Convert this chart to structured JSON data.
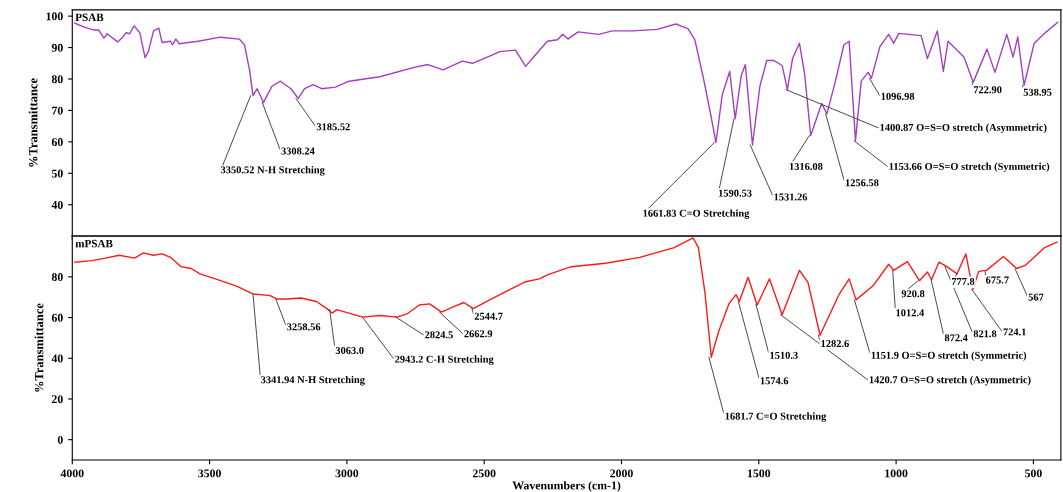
{
  "chart_data": [
    {
      "type": "line",
      "ylabel": "%Transmittance",
      "xlim": [
        4000,
        400
      ],
      "xticks": [
        4000,
        3500,
        3000,
        2500,
        2000,
        1500,
        1000,
        500
      ],
      "ylim": [
        30,
        102
      ],
      "yticks": [
        40,
        50,
        60,
        70,
        80,
        90,
        100
      ],
      "tick_labels": "y",
      "grid": false,
      "x": [
        3991,
        3954,
        3923,
        3904,
        3885,
        3873,
        3835,
        3816,
        3804,
        3791,
        3775,
        3754,
        3735,
        3723,
        3704,
        3685,
        3673,
        3642,
        3635,
        3623,
        3610,
        3542,
        3460,
        3392,
        3373,
        3354,
        3342,
        3327,
        3304,
        3273,
        3242,
        3204,
        3177,
        3154,
        3123,
        3092,
        3042,
        2992,
        2880,
        2755,
        2705,
        2649,
        2580,
        2543,
        2493,
        2443,
        2386,
        2349,
        2320,
        2270,
        2233,
        2214,
        2195,
        2158,
        2083,
        2033,
        1958,
        1870,
        1802,
        1758,
        1733,
        1702,
        1677,
        1656,
        1633,
        1606,
        1586,
        1564,
        1549,
        1523,
        1496,
        1471,
        1446,
        1415,
        1396,
        1377,
        1352,
        1333,
        1311,
        1271,
        1252,
        1221,
        1190,
        1171,
        1148,
        1127,
        1102,
        1090,
        1059,
        1027,
        1009,
        990,
        909,
        886,
        850,
        828,
        811,
        753,
        719,
        669,
        640,
        597,
        574,
        557,
        534,
        497,
        453,
        412
      ],
      "series": [
        {
          "name": "PSAB",
          "color": "#a43fc0",
          "values": [
            97.8,
            96.4,
            95.6,
            95.6,
            93,
            94.4,
            91.8,
            93.3,
            94.7,
            94.4,
            96.9,
            94.7,
            86.8,
            88.7,
            95.3,
            96.2,
            91.6,
            92,
            90.9,
            92.7,
            91.2,
            92,
            93.3,
            92.7,
            90.9,
            82.6,
            74.7,
            76.9,
            72.5,
            77.7,
            79.3,
            76.9,
            73.8,
            76.9,
            78.2,
            76.9,
            77.4,
            79.3,
            80.7,
            83.7,
            84.6,
            82.9,
            85.7,
            85,
            86.8,
            88.7,
            89.2,
            84,
            87,
            92,
            92.5,
            94.2,
            92.7,
            95,
            94.2,
            95.3,
            95.3,
            95.8,
            97.5,
            96,
            92.5,
            80.4,
            69.5,
            59.8,
            75,
            82.4,
            67.3,
            81,
            84.6,
            59,
            77.7,
            85.9,
            85.9,
            84.3,
            76.6,
            86.5,
            91.4,
            81.5,
            62,
            72.2,
            68.9,
            79.3,
            90.9,
            92,
            60.4,
            79.3,
            82.1,
            80.2,
            90.3,
            94.2,
            91.4,
            94.5,
            93.8,
            86.5,
            95.3,
            82.4,
            92,
            87,
            79,
            89.5,
            82.1,
            94.2,
            87,
            93.4,
            78,
            91.4,
            95,
            98
          ]
        }
      ],
      "annotations": [
        {
          "text": "3350.52 N-H Stretching",
          "x": 3350.52,
          "y": 74.7
        },
        {
          "text": "3308.24",
          "x": 3308.24,
          "y": 72.5
        },
        {
          "text": "3185.52",
          "x": 3185.52,
          "y": 73.8
        },
        {
          "text": "1661.83 C=O Stretching",
          "x": 1661.83,
          "y": 59.8
        },
        {
          "text": "1590.53",
          "x": 1590.53,
          "y": 67.3
        },
        {
          "text": "1531.26",
          "x": 1531.26,
          "y": 59
        },
        {
          "text": "1400.87 O=S=O stretch (Asymmetric)",
          "x": 1400.87,
          "y": 76.6
        },
        {
          "text": "1316.08",
          "x": 1316.08,
          "y": 62
        },
        {
          "text": "1256.58",
          "x": 1256.58,
          "y": 68.9
        },
        {
          "text": "1153.66 O=S=O stretch (Symmetric)",
          "x": 1153.66,
          "y": 60.4
        },
        {
          "text": "1096.98",
          "x": 1096.98,
          "y": 80.2
        },
        {
          "text": "722.90",
          "x": 722.9,
          "y": 79
        },
        {
          "text": "538.95",
          "x": 538.95,
          "y": 78
        }
      ]
    },
    {
      "type": "line",
      "ylabel": "%Transmittance",
      "xlabel": "Wavenumbers (cm-1)",
      "xlim": [
        4000,
        400
      ],
      "xticks": [
        4000,
        3500,
        3000,
        2500,
        2000,
        1500,
        1000,
        500
      ],
      "ylim": [
        -10,
        100
      ],
      "yticks": [
        0,
        20,
        40,
        60,
        80
      ],
      "grid": false,
      "x": [
        3991,
        3929,
        3879,
        3829,
        3773,
        3741,
        3704,
        3673,
        3642,
        3604,
        3567,
        3535,
        3479,
        3404,
        3342,
        3279,
        3254,
        3217,
        3167,
        3111,
        3073,
        3054,
        3036,
        3005,
        2942,
        2880,
        2817,
        2780,
        2736,
        2699,
        2655,
        2617,
        2574,
        2540,
        2480,
        2418,
        2349,
        2299,
        2270,
        2183,
        2058,
        1933,
        1808,
        1739,
        1720,
        1696,
        1673,
        1646,
        1608,
        1583,
        1571,
        1539,
        1506,
        1461,
        1415,
        1352,
        1321,
        1277,
        1208,
        1171,
        1146,
        1084,
        1027,
        1009,
        959,
        915,
        886,
        871,
        844,
        815,
        778,
        746,
        721,
        699,
        671,
        609,
        561,
        528,
        459,
        415
      ],
      "series": [
        {
          "name": "mPSAB",
          "color": "#ff1a1a",
          "values": [
            87.2,
            88,
            89.2,
            90.6,
            89.2,
            91.8,
            90.6,
            91.3,
            89.6,
            85,
            84.1,
            81.5,
            79,
            75.6,
            71.6,
            70.8,
            69.1,
            69.1,
            69.6,
            67.9,
            64.4,
            62.2,
            63.9,
            62.7,
            60.2,
            61,
            60.2,
            61.9,
            66.2,
            66.7,
            62.7,
            65,
            67.4,
            64.4,
            68.7,
            73,
            77.6,
            79,
            81,
            85,
            86.7,
            89.6,
            94.4,
            99.1,
            94.4,
            72.1,
            40.5,
            53.3,
            67,
            71.3,
            67.9,
            79.8,
            66.2,
            79,
            61.4,
            83.2,
            77.3,
            51.3,
            71.3,
            79,
            68.7,
            75.6,
            86.2,
            83.2,
            87.5,
            78.1,
            82.4,
            78.6,
            87.2,
            85,
            81.5,
            91.3,
            73.8,
            82.7,
            83.2,
            90,
            84.1,
            85.8,
            94.4,
            97
          ]
        }
      ],
      "annotations": [
        {
          "text": "3341.94 N-H Stretching",
          "x": 3341.94,
          "y": 71.6
        },
        {
          "text": "3258.56",
          "x": 3258.56,
          "y": 69.1
        },
        {
          "text": "3063.0",
          "x": 3063.0,
          "y": 64
        },
        {
          "text": "2943.2 C-H Stretching",
          "x": 2943.2,
          "y": 60.2
        },
        {
          "text": "2824.5",
          "x": 2824.5,
          "y": 60.5
        },
        {
          "text": "2662.9",
          "x": 2662.9,
          "y": 62.7
        },
        {
          "text": "2544.7",
          "x": 2544.7,
          "y": 64.4
        },
        {
          "text": "1681.7 C=O Stretching",
          "x": 1681.7,
          "y": 40.5
        },
        {
          "text": "1574.6",
          "x": 1574.6,
          "y": 68
        },
        {
          "text": "1510.3",
          "x": 1510.3,
          "y": 66.5
        },
        {
          "text": "1420.7 O=S=O stretch (Asymmetric)",
          "x": 1420.7,
          "y": 61.4
        },
        {
          "text": "1282.6",
          "x": 1282.6,
          "y": 51.3
        },
        {
          "text": "1151.9 O=S=O stretch (Symmetric)",
          "x": 1151.9,
          "y": 68.7
        },
        {
          "text": "1012.4",
          "x": 1012.4,
          "y": 83.2
        },
        {
          "text": "920.8",
          "x": 920.8,
          "y": 78
        },
        {
          "text": "872.4",
          "x": 872.4,
          "y": 78.6
        },
        {
          "text": "821.8",
          "x": 821.8,
          "y": 85
        },
        {
          "text": "777.8",
          "x": 777.8,
          "y": 81.5
        },
        {
          "text": "724.1",
          "x": 724.1,
          "y": 73.8
        },
        {
          "text": "675.7",
          "x": 675.7,
          "y": 83
        },
        {
          "text": "567",
          "x": 567,
          "y": 84
        }
      ]
    }
  ]
}
